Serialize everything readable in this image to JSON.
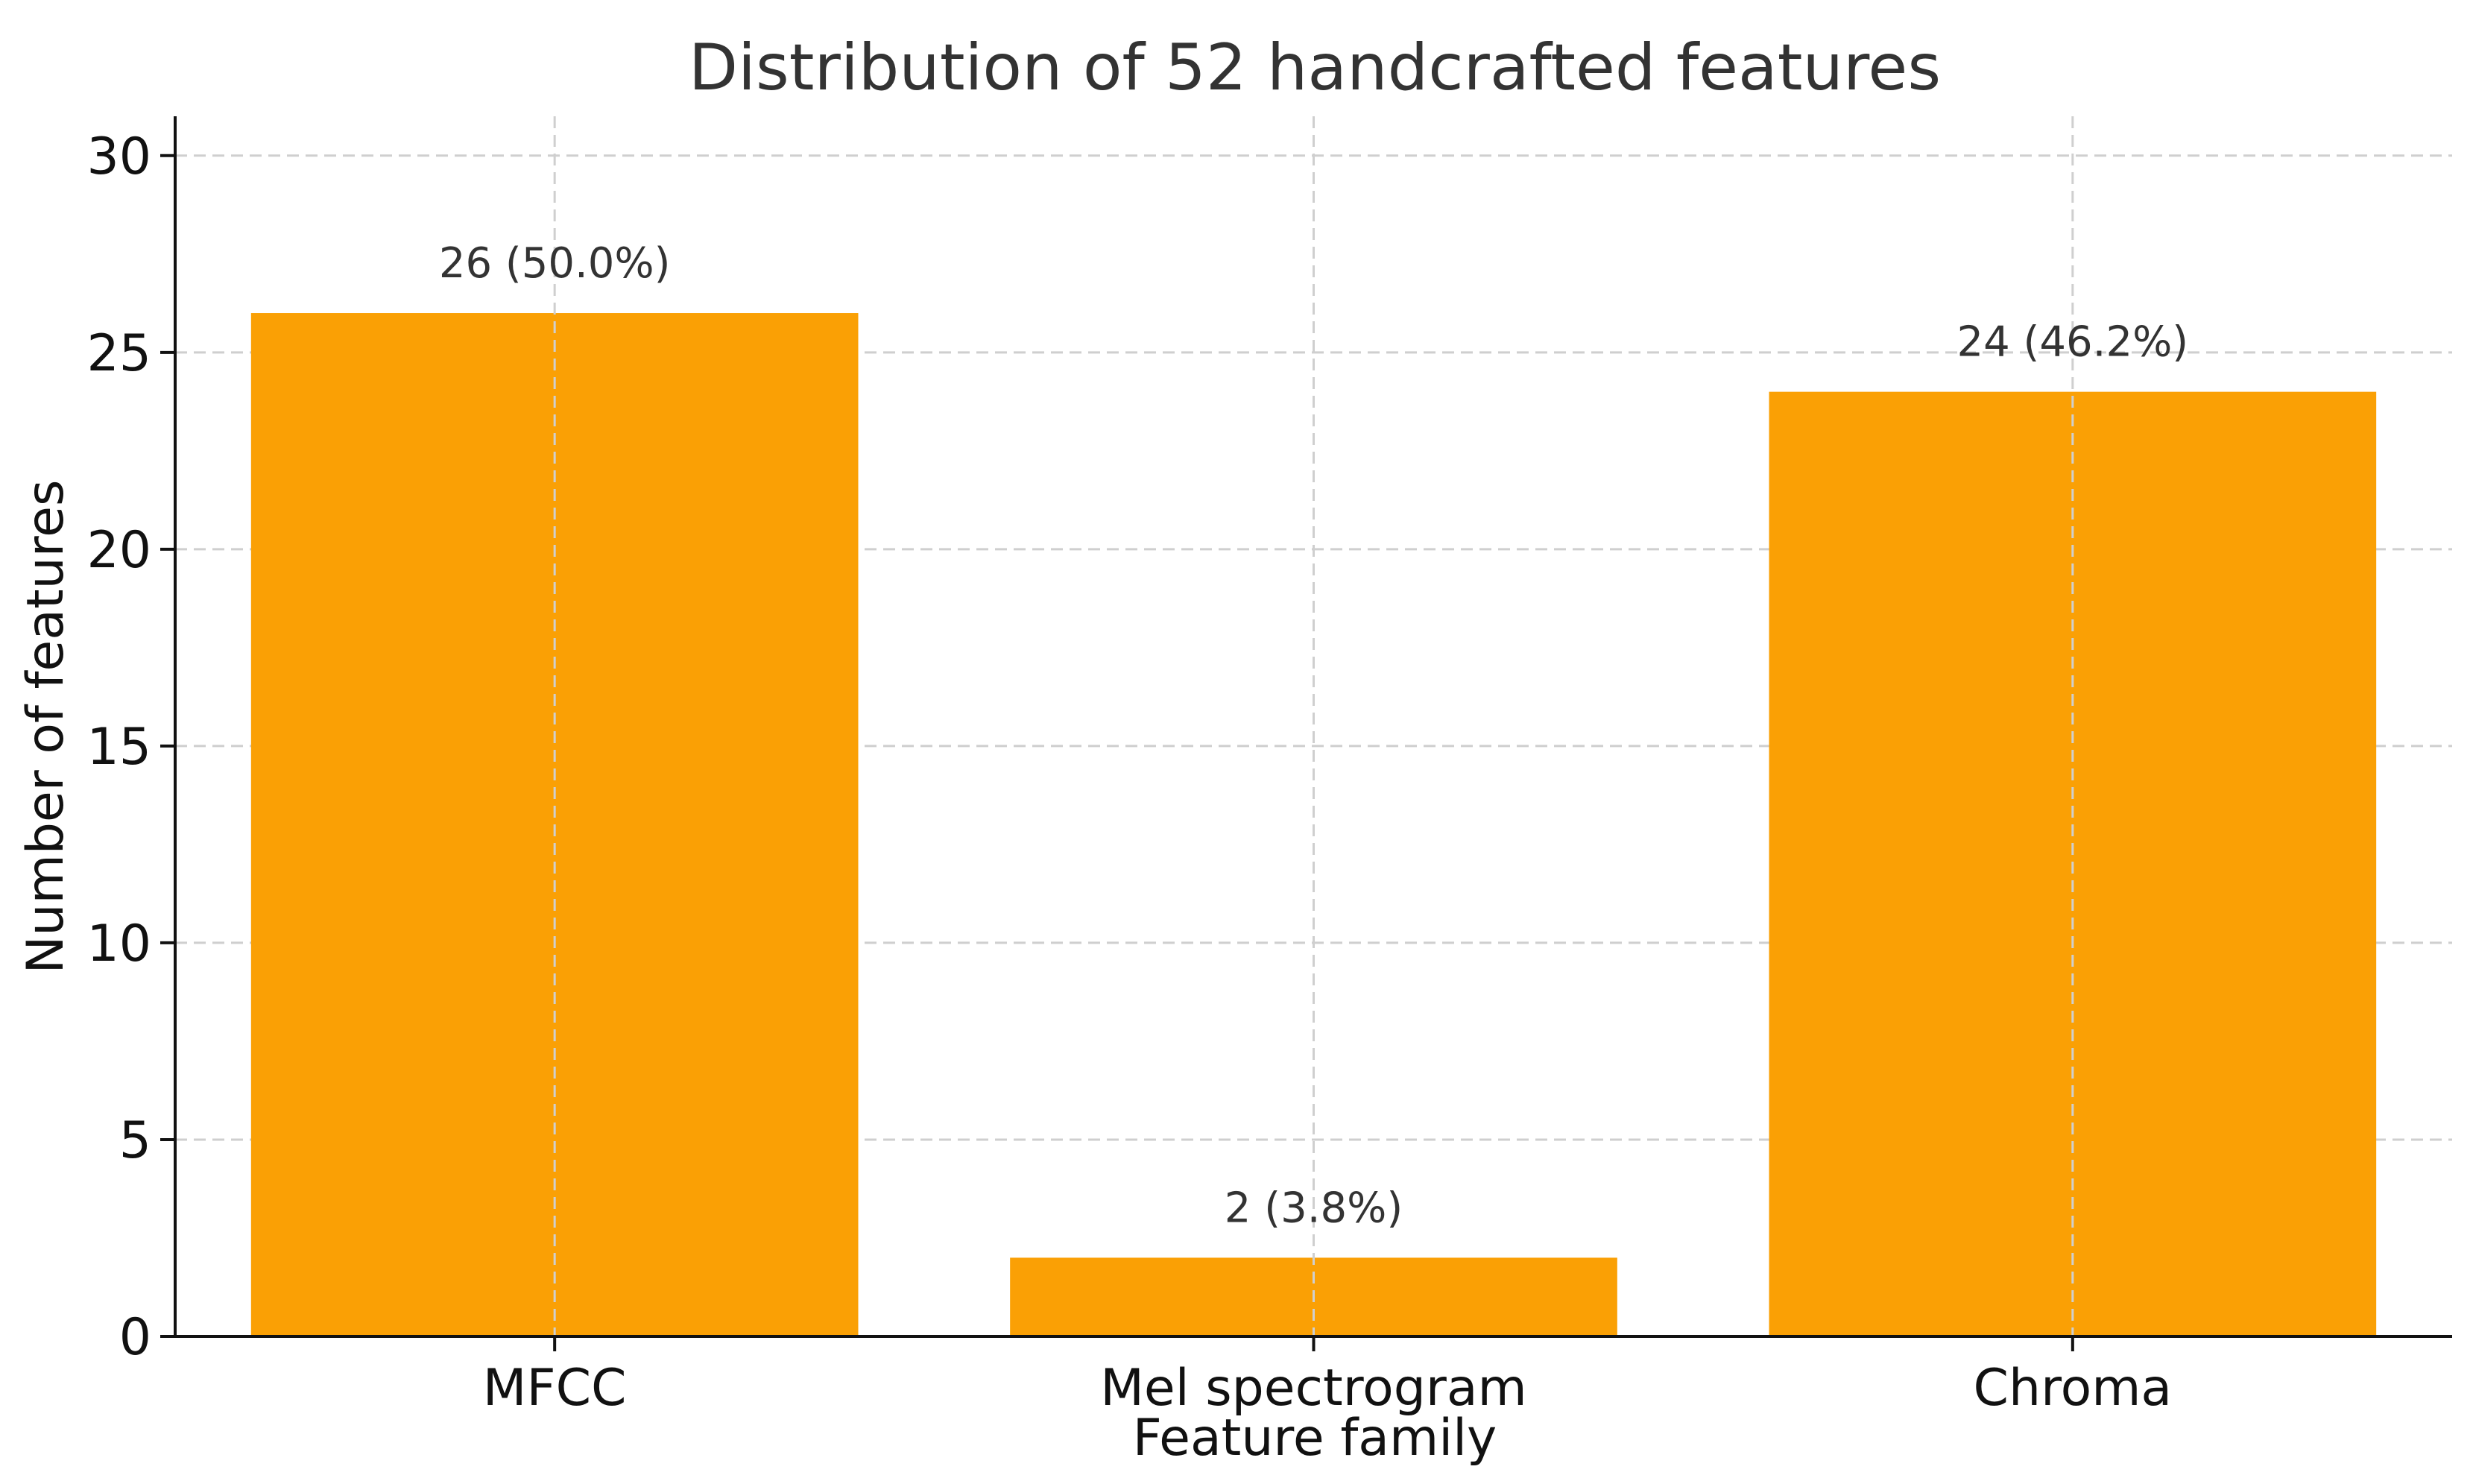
{
  "chart_data": {
    "type": "bar",
    "title": "Distribution of 52 handcrafted features",
    "xlabel": "Feature family",
    "ylabel": "Number of features",
    "categories": [
      "MFCC",
      "Mel spectrogram",
      "Chroma"
    ],
    "values": [
      26,
      2,
      24
    ],
    "data_labels": [
      "26  (50.0%)",
      "2  (3.8%)",
      "24  (46.2%)"
    ],
    "yticks": [
      0,
      5,
      10,
      15,
      20,
      25,
      30
    ],
    "ylim": [
      0,
      31
    ],
    "grid": true,
    "bar_color": "#faa005",
    "colors": {
      "title": "#333333",
      "axis": "#111111",
      "grid": "#cfcfcf"
    }
  }
}
